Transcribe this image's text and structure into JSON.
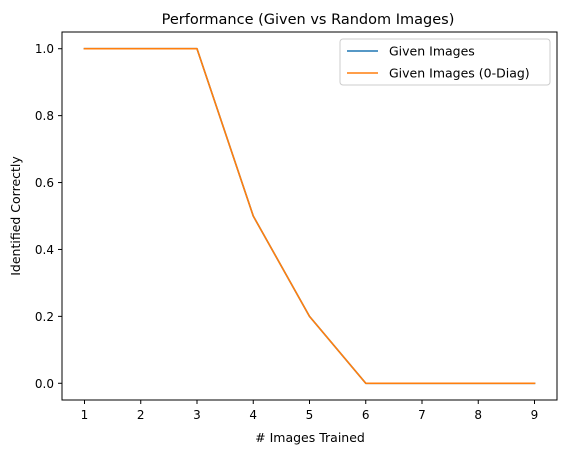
{
  "chart_data": {
    "type": "line",
    "title": "Performance (Given vs Random Images)",
    "xlabel": "# Images Trained",
    "ylabel": "Identified Correctly",
    "x": [
      1,
      2,
      3,
      4,
      5,
      6,
      7,
      8,
      9
    ],
    "xticks": [
      1,
      2,
      3,
      4,
      5,
      6,
      7,
      8,
      9
    ],
    "yticks": [
      0.0,
      0.2,
      0.4,
      0.6,
      0.8,
      1.0
    ],
    "ytick_labels": [
      "0.0",
      "0.2",
      "0.4",
      "0.6",
      "0.8",
      "1.0"
    ],
    "xlim": [
      0.6,
      9.4
    ],
    "ylim": [
      -0.05,
      1.05
    ],
    "grid": false,
    "legend_position": "top-right",
    "series": [
      {
        "name": "Given Images",
        "color": "#1f77b4",
        "values": [
          1.0,
          1.0,
          1.0,
          0.5,
          0.2,
          0.0,
          0.0,
          0.0,
          0.0
        ]
      },
      {
        "name": "Given Images (0-Diag)",
        "color": "#ff7f0e",
        "values": [
          1.0,
          1.0,
          1.0,
          0.5,
          0.2,
          0.0,
          0.0,
          0.0,
          0.0
        ]
      }
    ]
  }
}
